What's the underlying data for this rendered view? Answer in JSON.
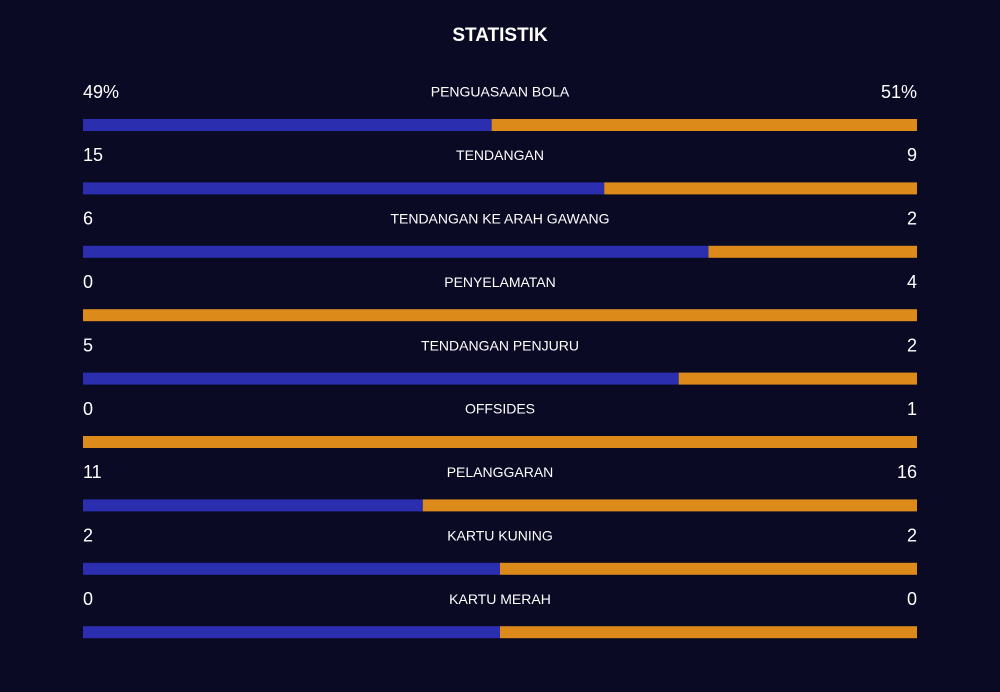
{
  "chart_data": {
    "type": "split-bar",
    "title": "STATISTIK",
    "categories": [
      "PENGUASAAN BOLA",
      "TENDANGAN",
      "TENDANGAN KE ARAH GAWANG",
      "PENYELAMATAN",
      "TENDANGAN PENJURU",
      "OFFSIDES",
      "PELANGGARAN",
      "KARTU KUNING",
      "KARTU MERAH"
    ],
    "series": [
      {
        "color": "#2b2eae",
        "values": [
          49,
          15,
          6,
          0,
          5,
          0,
          11,
          2,
          0
        ],
        "value_labels": [
          "49%",
          "15",
          "6",
          "0",
          "5",
          "0",
          "11",
          "2",
          "0"
        ]
      },
      {
        "color": "#dc8a19",
        "values": [
          51,
          9,
          2,
          4,
          2,
          1,
          16,
          2,
          0
        ],
        "value_labels": [
          "51%",
          "9",
          "2",
          "4",
          "2",
          "1",
          "16",
          "2",
          "0"
        ]
      }
    ]
  }
}
